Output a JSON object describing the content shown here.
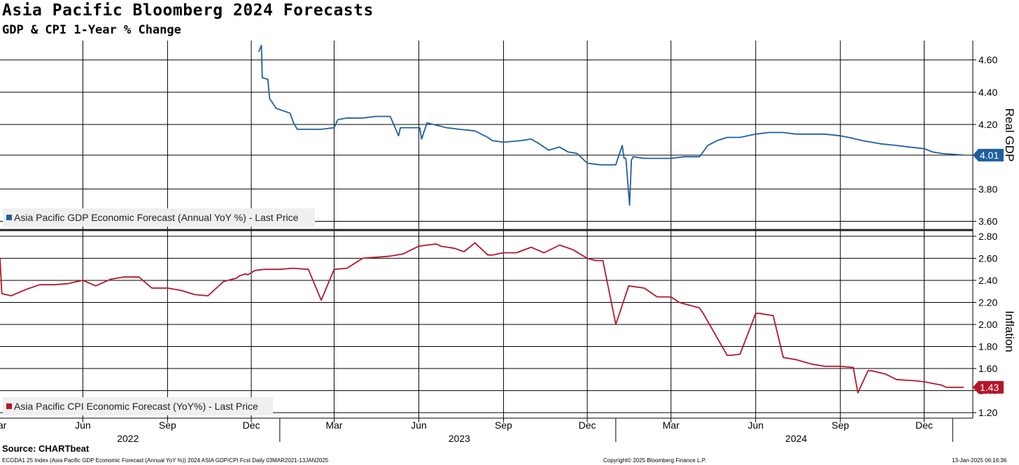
{
  "header": {
    "title": "Asia Pacific Bloomberg 2024 Forecasts",
    "subtitle": "GDP & CPI 1-Year % Change"
  },
  "footer": {
    "source": "Source: CHARTbeat",
    "index_info": "ECGDA1 25 Index (Asia Pacific GDP Economic Forecast (Annual YoY %)) 2024 ASIA GDP/CPI Fcst  Daily 03MAR2021-13JAN2025",
    "copyright": "Copyright© 2025 Bloomberg Finance L.P.",
    "timestamp": "13-Jan-2025 06:16:36"
  },
  "chart_data": [
    {
      "type": "line",
      "panel": "top",
      "ylabel": "Real GDP",
      "legend": "Asia Pacific GDP Economic Forecast (Annual YoY %) - Last Price",
      "legend_position": "bottom-left",
      "color": "#1f5f9f",
      "last_value_label": "4.01",
      "yticks": [
        "3.60",
        "3.80",
        "4.01",
        "4.20",
        "4.40",
        "4.60"
      ],
      "ylim": [
        3.55,
        4.72
      ],
      "grid": true,
      "series": [
        {
          "x": [
            "2022-12-09",
            "2022-12-12",
            "2022-12-13",
            "2022-12-19",
            "2022-12-21",
            "2022-12-28",
            "2023-01-02",
            "2023-01-12",
            "2023-01-16",
            "2023-01-20",
            "2023-02-15",
            "2023-03-01",
            "2023-03-05",
            "2023-03-15",
            "2023-04-01",
            "2023-04-15",
            "2023-05-01",
            "2023-05-10",
            "2023-05-12",
            "2023-05-25",
            "2023-06-02",
            "2023-06-04",
            "2023-06-10",
            "2023-07-01",
            "2023-07-15",
            "2023-08-01",
            "2023-08-15",
            "2023-08-20",
            "2023-09-01",
            "2023-09-20",
            "2023-10-01",
            "2023-10-10",
            "2023-10-20",
            "2023-11-01",
            "2023-11-10",
            "2023-11-20",
            "2023-12-01",
            "2023-12-15",
            "2024-01-01",
            "2024-01-08",
            "2024-01-10",
            "2024-01-12",
            "2024-01-16",
            "2024-01-18",
            "2024-01-20",
            "2024-02-01",
            "2024-02-15",
            "2024-03-01",
            "2024-03-15",
            "2024-04-01",
            "2024-04-10",
            "2024-04-20",
            "2024-05-01",
            "2024-05-15",
            "2024-06-01",
            "2024-06-15",
            "2024-07-01",
            "2024-07-15",
            "2024-08-01",
            "2024-08-15",
            "2024-09-01",
            "2024-09-10",
            "2024-09-25",
            "2024-10-05",
            "2024-10-15",
            "2024-11-01",
            "2024-11-15",
            "2024-12-01",
            "2024-12-10",
            "2024-12-20",
            "2025-01-13"
          ],
          "y": [
            4.65,
            4.69,
            4.49,
            4.48,
            4.36,
            4.3,
            4.29,
            4.27,
            4.21,
            4.17,
            4.17,
            4.18,
            4.23,
            4.24,
            4.24,
            4.25,
            4.25,
            4.13,
            4.18,
            4.18,
            4.18,
            4.11,
            4.21,
            4.18,
            4.17,
            4.16,
            4.12,
            4.1,
            4.09,
            4.1,
            4.11,
            4.08,
            4.04,
            4.06,
            4.03,
            4.02,
            3.96,
            3.95,
            3.95,
            4.07,
            3.99,
            3.99,
            3.7,
            3.98,
            4.0,
            3.99,
            3.99,
            3.99,
            4.0,
            4.0,
            4.07,
            4.1,
            4.12,
            4.12,
            4.14,
            4.15,
            4.15,
            4.14,
            4.14,
            4.14,
            4.13,
            4.12,
            4.1,
            4.09,
            4.08,
            4.07,
            4.06,
            4.05,
            4.03,
            4.02,
            4.01
          ]
        }
      ]
    },
    {
      "type": "line",
      "panel": "bottom",
      "ylabel": "Inflation",
      "legend": "Asia Pacific CPI Economic Forecast (YoY%) - Last Price",
      "legend_position": "bottom-left",
      "color": "#b5162b",
      "last_value_label": "1.43",
      "yticks": [
        "1.20",
        "1.40",
        "1.60",
        "1.80",
        "2.00",
        "2.20",
        "2.40",
        "2.60",
        "2.80"
      ],
      "ylim": [
        1.15,
        2.85
      ],
      "grid": true,
      "series": [
        {
          "x": [
            "2022-03-03",
            "2022-03-05",
            "2022-03-15",
            "2022-04-01",
            "2022-04-15",
            "2022-05-01",
            "2022-05-15",
            "2022-06-01",
            "2022-06-15",
            "2022-07-01",
            "2022-07-15",
            "2022-08-01",
            "2022-08-15",
            "2022-09-01",
            "2022-09-15",
            "2022-10-01",
            "2022-10-15",
            "2022-11-01",
            "2022-11-15",
            "2022-11-18",
            "2022-11-25",
            "2022-11-27",
            "2022-12-05",
            "2022-12-15",
            "2023-01-01",
            "2023-01-15",
            "2023-02-01",
            "2023-02-15",
            "2023-03-01",
            "2023-03-15",
            "2023-04-01",
            "2023-05-01",
            "2023-05-15",
            "2023-06-01",
            "2023-06-10",
            "2023-06-20",
            "2023-06-25",
            "2023-07-10",
            "2023-07-20",
            "2023-08-01",
            "2023-08-15",
            "2023-08-20",
            "2023-09-01",
            "2023-09-15",
            "2023-10-01",
            "2023-10-15",
            "2023-11-01",
            "2023-11-15",
            "2023-12-01",
            "2023-12-10",
            "2023-12-15",
            "2023-12-18",
            "2024-01-01",
            "2024-01-15",
            "2024-02-01",
            "2024-02-15",
            "2024-03-01",
            "2024-03-10",
            "2024-04-01",
            "2024-04-05",
            "2024-05-01",
            "2024-05-05",
            "2024-05-15",
            "2024-06-01",
            "2024-06-05",
            "2024-06-20",
            "2024-07-01",
            "2024-07-15",
            "2024-08-01",
            "2024-08-15",
            "2024-09-01",
            "2024-09-15",
            "2024-09-20",
            "2024-10-01",
            "2024-10-05",
            "2024-10-20",
            "2024-11-01",
            "2024-11-20",
            "2024-12-01",
            "2024-12-20",
            "2024-12-25",
            "2025-01-13"
          ],
          "y": [
            2.6,
            2.28,
            2.26,
            2.32,
            2.36,
            2.36,
            2.37,
            2.4,
            2.35,
            2.41,
            2.43,
            2.43,
            2.33,
            2.33,
            2.31,
            2.27,
            2.26,
            2.39,
            2.42,
            2.44,
            2.46,
            2.45,
            2.49,
            2.5,
            2.5,
            2.51,
            2.5,
            2.22,
            2.5,
            2.51,
            2.6,
            2.62,
            2.64,
            2.71,
            2.72,
            2.73,
            2.71,
            2.69,
            2.66,
            2.74,
            2.63,
            2.63,
            2.65,
            2.65,
            2.7,
            2.65,
            2.72,
            2.68,
            2.6,
            2.58,
            2.58,
            2.58,
            2.0,
            2.35,
            2.33,
            2.25,
            2.25,
            2.2,
            2.15,
            2.1,
            1.72,
            1.72,
            1.73,
            2.1,
            2.1,
            2.08,
            1.7,
            1.68,
            1.64,
            1.62,
            1.62,
            1.61,
            1.38,
            1.58,
            1.58,
            1.55,
            1.5,
            1.49,
            1.48,
            1.45,
            1.43,
            1.43
          ]
        }
      ]
    }
  ],
  "x_axis": {
    "start": "2022-03-03",
    "end": "2025-01-13",
    "month_labels": [
      {
        "label": "Mar",
        "date": "2022-03-01"
      },
      {
        "label": "Jun",
        "date": "2022-06-01"
      },
      {
        "label": "Sep",
        "date": "2022-09-01"
      },
      {
        "label": "Dec",
        "date": "2022-12-01"
      },
      {
        "label": "Mar",
        "date": "2023-03-01"
      },
      {
        "label": "Jun",
        "date": "2023-06-01"
      },
      {
        "label": "Sep",
        "date": "2023-09-01"
      },
      {
        "label": "Dec",
        "date": "2023-12-01"
      },
      {
        "label": "Mar",
        "date": "2024-03-01"
      },
      {
        "label": "Jun",
        "date": "2024-06-01"
      },
      {
        "label": "Sep",
        "date": "2024-09-01"
      },
      {
        "label": "Dec",
        "date": "2024-12-01"
      }
    ],
    "year_labels": [
      {
        "label": "2022",
        "date": "2022-07-20"
      },
      {
        "label": "2023",
        "date": "2023-07-15"
      },
      {
        "label": "2024",
        "date": "2024-07-15"
      }
    ],
    "year_dividers": [
      "2023-01-01",
      "2024-01-01",
      "2025-01-01"
    ]
  }
}
